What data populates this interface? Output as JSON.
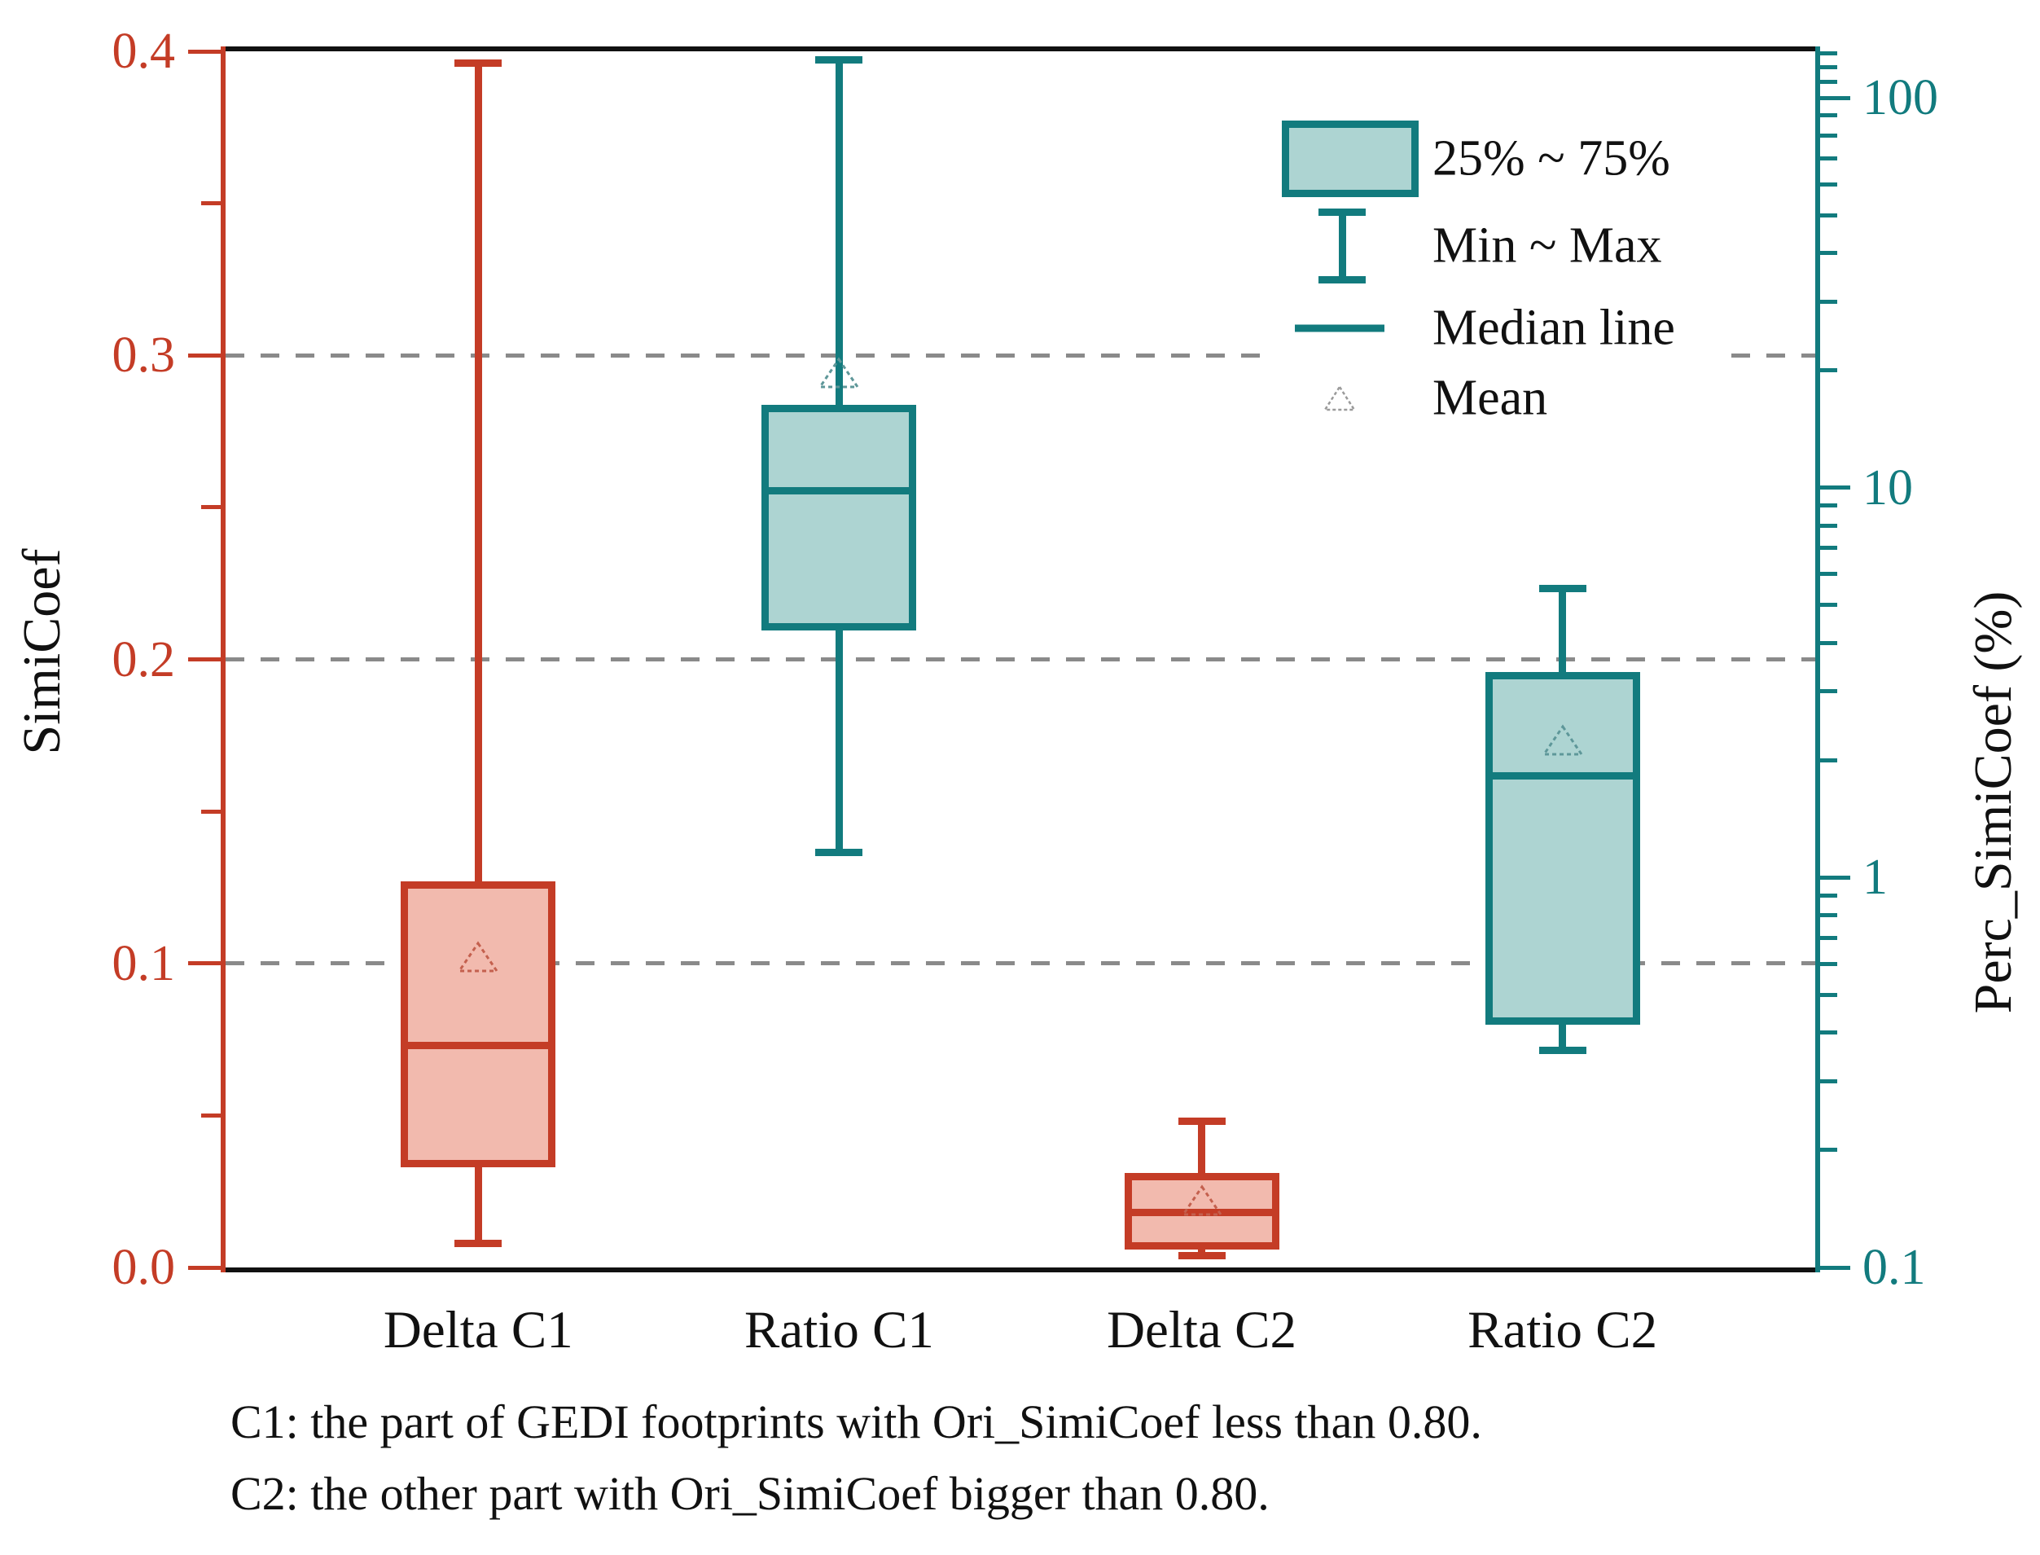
{
  "chart_data": {
    "type": "box",
    "title": "",
    "categories": [
      "Delta C1",
      "Ratio C1",
      "Delta C2",
      "Ratio C2"
    ],
    "series": [
      {
        "name": "Delta C1",
        "axis": "left",
        "stroke": "#c43c26",
        "fill": "#f2baae",
        "mean_stroke": "#c4604e",
        "min": 0.008,
        "q1": 0.033,
        "median": 0.073,
        "q3": 0.127,
        "max": 0.396,
        "mean": 0.102
      },
      {
        "name": "Ratio C1",
        "axis": "right",
        "stroke": "#127b7e",
        "fill": "#add4d2",
        "mean_stroke": "#5e9799",
        "min": 1.16,
        "q1": 4.3,
        "median": 9.8,
        "q3": 16.3,
        "max": 125,
        "mean": 19.7
      },
      {
        "name": "Delta C2",
        "axis": "left",
        "stroke": "#c43c26",
        "fill": "#f2baae",
        "mean_stroke": "#c4604e",
        "min": 0.004,
        "q1": 0.006,
        "median": 0.018,
        "q3": 0.031,
        "max": 0.048,
        "mean": 0.022
      },
      {
        "name": "Ratio C2",
        "axis": "right",
        "stroke": "#127b7e",
        "fill": "#add4d2",
        "mean_stroke": "#5e9799",
        "min": 0.36,
        "q1": 0.42,
        "median": 1.82,
        "q3": 3.36,
        "max": 5.5,
        "mean": 2.25
      }
    ],
    "left_axis": {
      "label": "SimiCoef",
      "scale": "linear",
      "min": 0,
      "max": 0.4,
      "color": "#c43c26",
      "ticks": [
        0.0,
        0.1,
        0.2,
        0.3,
        0.4
      ],
      "tick_labels": [
        "0.0",
        "0.1",
        "0.2",
        "0.3",
        "0.4"
      ],
      "minor_ticks": [
        0.05,
        0.15,
        0.25,
        0.35
      ]
    },
    "right_axis": {
      "label": "Perc_SimiCoef (%)",
      "scale": "log",
      "min": 0.1,
      "max": 131,
      "color": "#127b7e",
      "ticks": [
        100,
        10,
        1,
        0.1
      ],
      "tick_labels": [
        "100",
        "10",
        "1",
        "0.1"
      ]
    },
    "gridlines_left_units": [
      0.3,
      0.2,
      0.1
    ],
    "grid_on": true,
    "legend": {
      "position": "top-right",
      "items": [
        {
          "marker": "box-swatch",
          "label": "25% ~ 75%"
        },
        {
          "marker": "whisker-ibar",
          "label": "Min ~ Max"
        },
        {
          "marker": "median-line",
          "label": "Median line"
        },
        {
          "marker": "mean-triangle",
          "label": "Mean"
        }
      ]
    },
    "footnotes": [
      "C1: the part of GEDI footprints with Ori_SimiCoef less than 0.80.",
      "C2: the other part with Ori_SimiCoef bigger than 0.80."
    ],
    "colors": {
      "red_stroke": "#c43c26",
      "red_fill": "#f2baae",
      "teal_stroke": "#127b7e",
      "teal_fill": "#add4d2",
      "grid": "#8a8a8a",
      "frame": "#111111"
    }
  }
}
